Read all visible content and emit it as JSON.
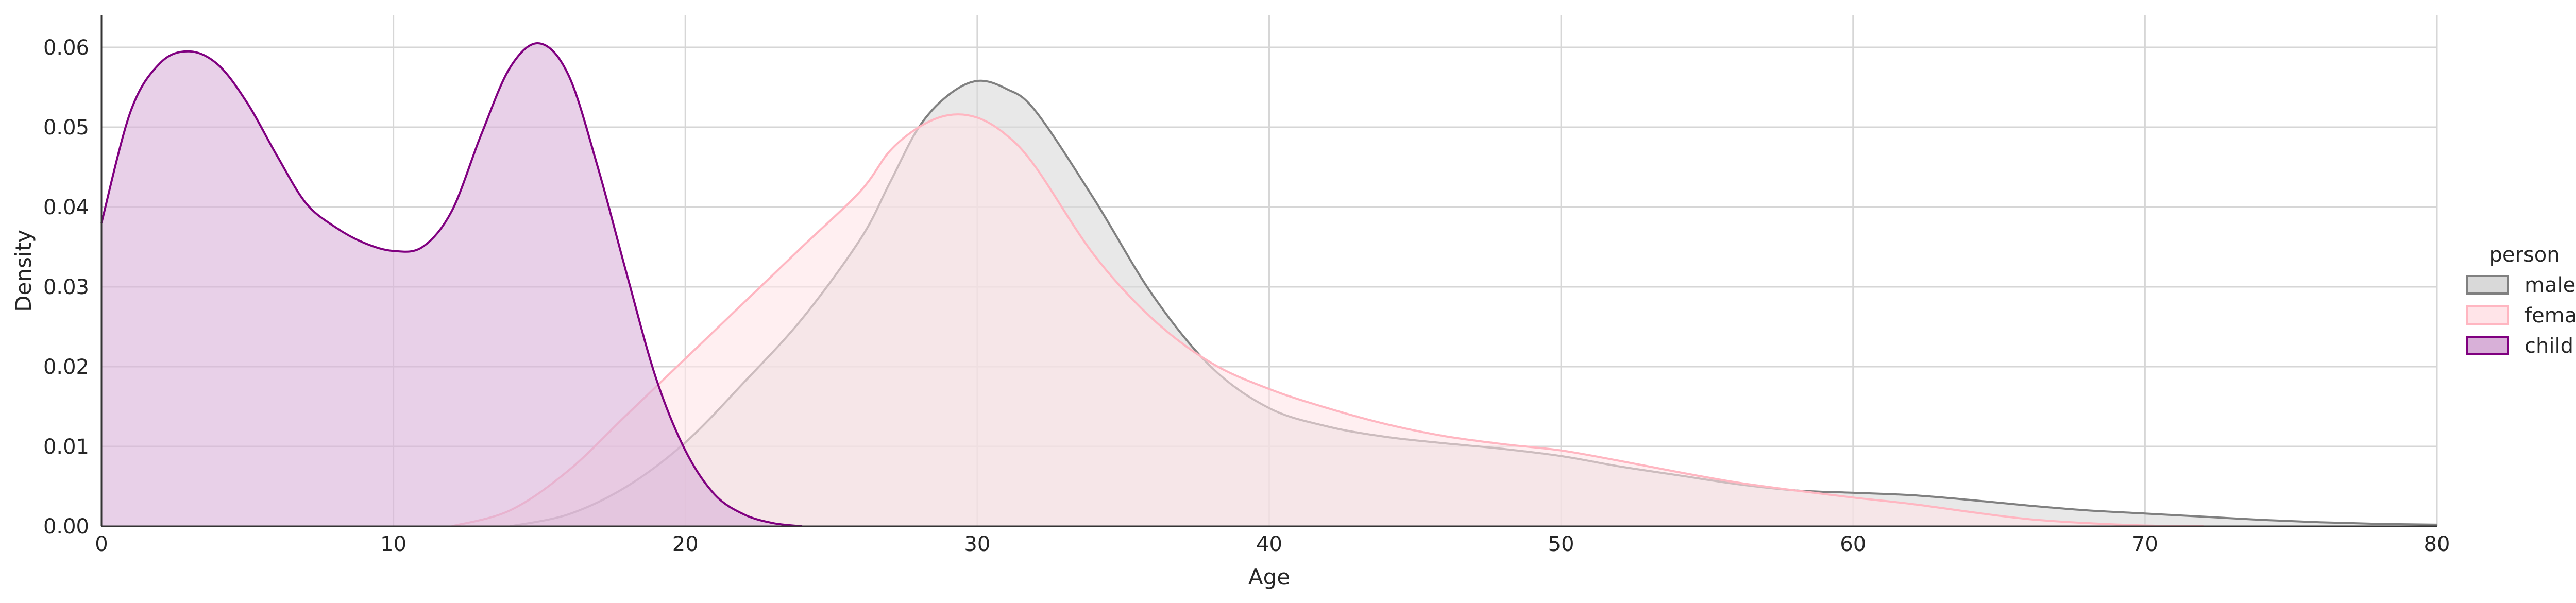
{
  "chart_data": {
    "type": "area",
    "xlabel": "Age",
    "ylabel": "Density",
    "xlim": [
      0,
      80
    ],
    "ylim": [
      0,
      0.064
    ],
    "x_ticks": [
      "0",
      "10",
      "20",
      "30",
      "40",
      "50",
      "60",
      "70",
      "80"
    ],
    "y_ticks": [
      "0.00",
      "0.01",
      "0.02",
      "0.03",
      "0.04",
      "0.05",
      "0.06"
    ],
    "grid": true,
    "legend_title": "person",
    "legend_position": "right",
    "series": [
      {
        "name": "male",
        "color": "#808080",
        "fill": "#d9d9d9",
        "x": [
          14,
          16,
          18,
          20,
          22,
          24,
          26,
          27,
          28,
          29,
          30,
          31,
          32,
          34,
          36,
          38,
          40,
          42,
          44,
          46,
          48,
          50,
          52,
          54,
          56,
          58,
          60,
          62,
          64,
          66,
          68,
          70,
          72,
          74,
          76,
          78,
          80
        ],
        "y": [
          0.0,
          0.0015,
          0.005,
          0.0105,
          0.018,
          0.026,
          0.036,
          0.043,
          0.05,
          0.054,
          0.0558,
          0.0548,
          0.052,
          0.041,
          0.029,
          0.02,
          0.0148,
          0.0125,
          0.0112,
          0.0104,
          0.0097,
          0.0088,
          0.0075,
          0.0064,
          0.0053,
          0.0045,
          0.0042,
          0.0039,
          0.0033,
          0.0026,
          0.002,
          0.0016,
          0.0012,
          0.0008,
          0.0005,
          0.0003,
          0.0002
        ]
      },
      {
        "name": "female",
        "color": "#ffb6c1",
        "fill": "#ffe4e8",
        "x": [
          12,
          14,
          16,
          18,
          20,
          22,
          24,
          26,
          27,
          28,
          29,
          30,
          31,
          32,
          34,
          36,
          38,
          40,
          42,
          44,
          46,
          48,
          50,
          52,
          54,
          56,
          58,
          60,
          62,
          64,
          66,
          68,
          70,
          72
        ],
        "y": [
          0.0,
          0.002,
          0.007,
          0.014,
          0.021,
          0.028,
          0.035,
          0.042,
          0.047,
          0.05,
          0.0515,
          0.0512,
          0.049,
          0.045,
          0.034,
          0.026,
          0.0205,
          0.0172,
          0.0148,
          0.0128,
          0.0113,
          0.0103,
          0.0095,
          0.0082,
          0.0068,
          0.0055,
          0.0045,
          0.0036,
          0.0028,
          0.0018,
          0.0009,
          0.0004,
          0.0001,
          0.0
        ]
      },
      {
        "name": "child",
        "color": "#800080",
        "fill": "#d8b0d8",
        "x": [
          0,
          1,
          2,
          3,
          4,
          5,
          6,
          7,
          8,
          9,
          10,
          11,
          12,
          13,
          14,
          15,
          16,
          17,
          18,
          19,
          20,
          21,
          22,
          23,
          24
        ],
        "y": [
          0.038,
          0.052,
          0.058,
          0.0595,
          0.0578,
          0.053,
          0.0465,
          0.0405,
          0.0375,
          0.0355,
          0.0345,
          0.035,
          0.0395,
          0.049,
          0.0575,
          0.0605,
          0.0565,
          0.045,
          0.0315,
          0.0185,
          0.0095,
          0.004,
          0.0015,
          0.0004,
          0.0
        ]
      }
    ]
  }
}
